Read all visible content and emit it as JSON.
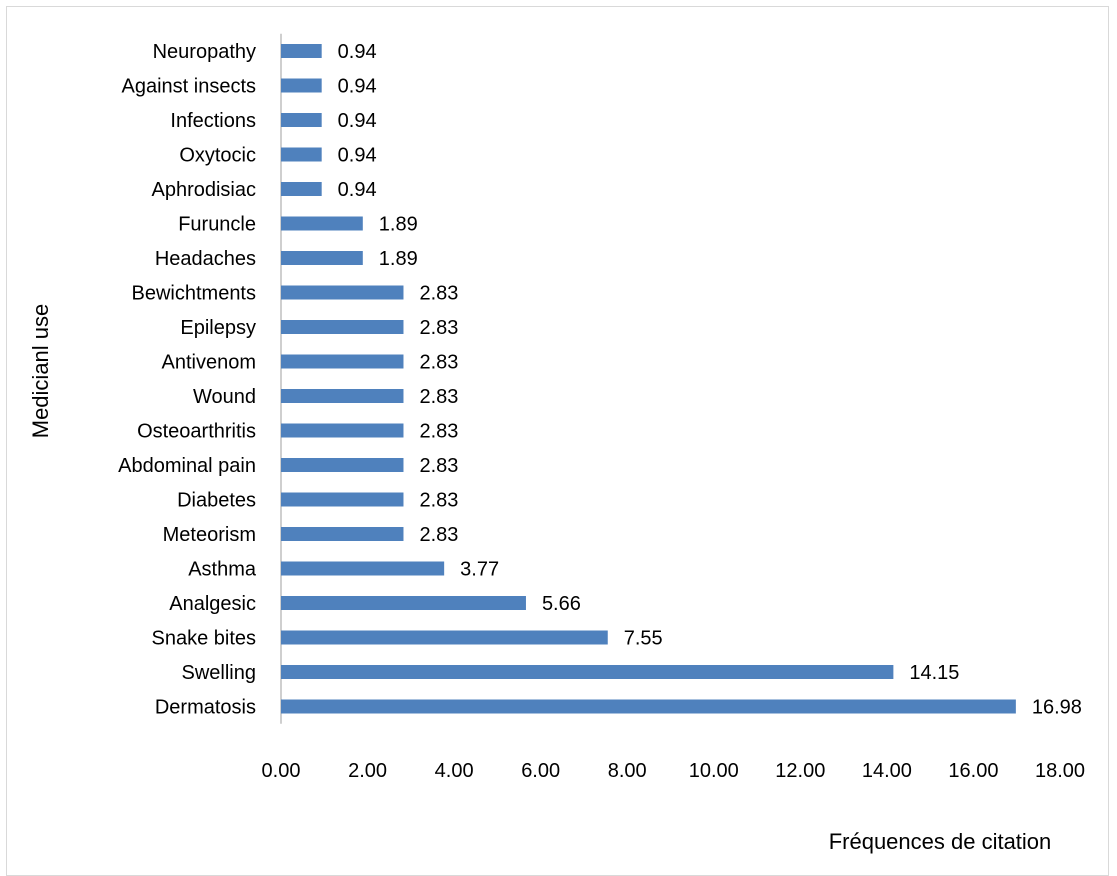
{
  "chart_data": {
    "type": "bar",
    "orientation": "horizontal",
    "categories": [
      "Dermatosis",
      "Swelling",
      "Snake bites",
      "Analgesic",
      "Asthma",
      "Meteorism",
      "Diabetes",
      "Abdominal pain",
      "Osteoarthritis",
      "Wound",
      "Antivenom",
      "Epilepsy",
      "Bewichtments",
      "Headaches",
      "Furuncle",
      "Aphrodisiac",
      "Oxytocic",
      "Infections",
      "Against insects",
      "Neuropathy"
    ],
    "values": [
      16.98,
      14.15,
      7.55,
      5.66,
      3.77,
      2.83,
      2.83,
      2.83,
      2.83,
      2.83,
      2.83,
      2.83,
      2.83,
      1.89,
      1.89,
      0.94,
      0.94,
      0.94,
      0.94,
      0.94
    ],
    "value_labels": [
      "16.98",
      "14.15",
      "7.55",
      "5.66",
      "3.77",
      "2.83",
      "2.83",
      "2.83",
      "2.83",
      "2.83",
      "2.83",
      "2.83",
      "2.83",
      "1.89",
      "1.89",
      "0.94",
      "0.94",
      "0.94",
      "0.94",
      "0.94"
    ],
    "xticks": [
      "0.00",
      "2.00",
      "4.00",
      "6.00",
      "8.00",
      "10.00",
      "12.00",
      "14.00",
      "16.00",
      "18.00"
    ],
    "xlim": [
      0,
      18
    ],
    "xlabel": "Fréquences de citation",
    "ylabel": "Medicianl use",
    "title": "",
    "grid": false,
    "bar_color": "#4f81bd"
  }
}
